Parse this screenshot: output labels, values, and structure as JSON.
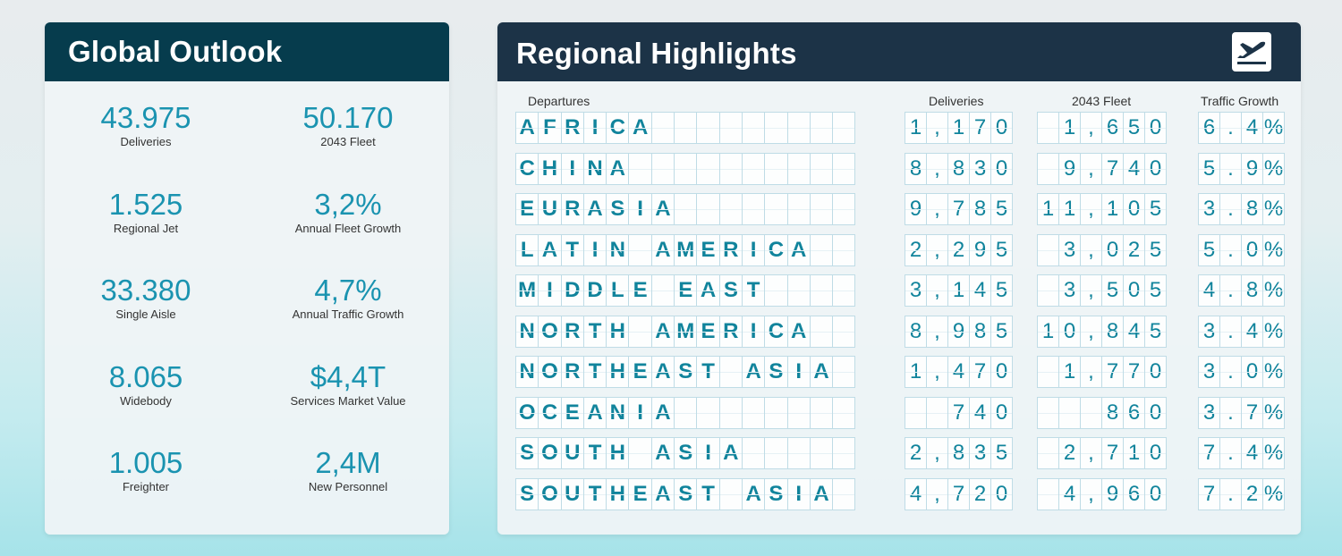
{
  "global": {
    "title": "Global Outlook",
    "stats": [
      {
        "value": "43.975",
        "label": "Deliveries"
      },
      {
        "value": "50.170",
        "label": "2043 Fleet"
      },
      {
        "value": "1.525",
        "label": "Regional Jet"
      },
      {
        "value": "3,2%",
        "label": "Annual Fleet Growth"
      },
      {
        "value": "33.380",
        "label": "Single Aisle"
      },
      {
        "value": "4,7%",
        "label": "Annual Traffic Growth"
      },
      {
        "value": "8.065",
        "label": "Widebody"
      },
      {
        "value": "$4,4T",
        "label": "Services Market Value"
      },
      {
        "value": "1.005",
        "label": "Freighter"
      },
      {
        "value": "2,4M",
        "label": "New Personnel"
      }
    ]
  },
  "regional": {
    "title": "Regional Highlights",
    "icon": "airplane-departure-icon",
    "columns": {
      "departures": "Departures",
      "deliveries": "Deliveries",
      "fleet": "2043 Fleet",
      "growth": "Traffic Growth"
    },
    "rows": [
      {
        "region": "AFRICA",
        "deliveries": "1,170",
        "fleet": "1,650",
        "growth": "6.4%"
      },
      {
        "region": "CHINA",
        "deliveries": "8,830",
        "fleet": "9,740",
        "growth": "5.9%"
      },
      {
        "region": "EURASIA",
        "deliveries": "9,785",
        "fleet": "11,105",
        "growth": "3.8%"
      },
      {
        "region": "LATIN AMERICA",
        "deliveries": "2,295",
        "fleet": "3,025",
        "growth": "5.0%"
      },
      {
        "region": "MIDDLE EAST",
        "deliveries": "3,145",
        "fleet": "3,505",
        "growth": "4.8%"
      },
      {
        "region": "NORTH AMERICA",
        "deliveries": "8,985",
        "fleet": "10,845",
        "growth": "3.4%"
      },
      {
        "region": "NORTHEAST ASIA",
        "deliveries": "1,470",
        "fleet": "1,770",
        "growth": "3.0%"
      },
      {
        "region": "OCEANIA",
        "deliveries": "740",
        "fleet": "860",
        "growth": "3.7%"
      },
      {
        "region": "SOUTH ASIA",
        "deliveries": "2,835",
        "fleet": "2,710",
        "growth": "7.4%"
      },
      {
        "region": "SOUTHEAST ASIA",
        "deliveries": "4,720",
        "fleet": "4,960",
        "growth": "7.2%"
      }
    ]
  }
}
